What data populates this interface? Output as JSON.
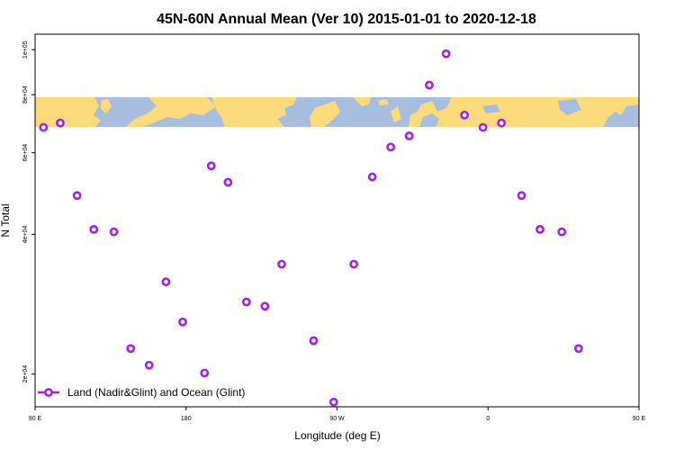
{
  "chart_data": {
    "type": "scatter",
    "title": "45N-60N Annual Mean (Ver 10)   2015-01-01 to 2020-12-18",
    "xlabel": "Longitude (deg E)",
    "ylabel": "N Total",
    "xlim": [
      90,
      450
    ],
    "ylim_log": true,
    "ylim": [
      17000,
      108000
    ],
    "x_ticks": [
      {
        "value": 90,
        "label": "90 E"
      },
      {
        "value": 180,
        "label": "180"
      },
      {
        "value": 270,
        "label": "90 W"
      },
      {
        "value": 360,
        "label": "0"
      },
      {
        "value": 450,
        "label": "90 E"
      },
      {
        "value": 540,
        "label": "180"
      }
    ],
    "y_ticks": [
      {
        "value": 20000,
        "label": "2e+04"
      },
      {
        "value": 40000,
        "label": "4e+04"
      },
      {
        "value": 60000,
        "label": "6e+04"
      },
      {
        "value": 80000,
        "label": "8e+04"
      },
      {
        "value": 100000,
        "label": "1e+05"
      }
    ],
    "grid": false,
    "legend_position": "bottom-left",
    "series": [
      {
        "name": "Land (Nadir&Glint) and Ocean (Glint)",
        "color": "#a020f0",
        "marker": "open-circle",
        "points": [
          {
            "x": 95,
            "y": 68000
          },
          {
            "x": 105,
            "y": 69500
          },
          {
            "x": 115,
            "y": 48500
          },
          {
            "x": 125,
            "y": 41000
          },
          {
            "x": 137,
            "y": 40500
          },
          {
            "x": 147,
            "y": 22700
          },
          {
            "x": 158,
            "y": 20900
          },
          {
            "x": 168,
            "y": 31600
          },
          {
            "x": 178,
            "y": 25900
          },
          {
            "x": 191,
            "y": 20100
          },
          {
            "x": 195,
            "y": 56200
          },
          {
            "x": 205,
            "y": 51800
          },
          {
            "x": 216,
            "y": 28600
          },
          {
            "x": 227,
            "y": 28000
          },
          {
            "x": 237,
            "y": 34500
          },
          {
            "x": 256,
            "y": 23600
          },
          {
            "x": 268,
            "y": 17400
          },
          {
            "x": 280,
            "y": 34500
          },
          {
            "x": 291,
            "y": 53200
          },
          {
            "x": 302,
            "y": 61700
          },
          {
            "x": 313,
            "y": 65200
          },
          {
            "x": 325,
            "y": 83900
          },
          {
            "x": 335,
            "y": 98000
          },
          {
            "x": 346,
            "y": 72300
          },
          {
            "x": 357,
            "y": 68000
          },
          {
            "x": 368,
            "y": 69500
          },
          {
            "x": 380,
            "y": 48500
          },
          {
            "x": 391,
            "y": 41000
          },
          {
            "x": 404,
            "y": 40500
          },
          {
            "x": 414,
            "y": 22700
          }
        ]
      }
    ]
  },
  "map_strip": {
    "ocean_color": "#a8bede",
    "land_color": "#fddb7a"
  }
}
